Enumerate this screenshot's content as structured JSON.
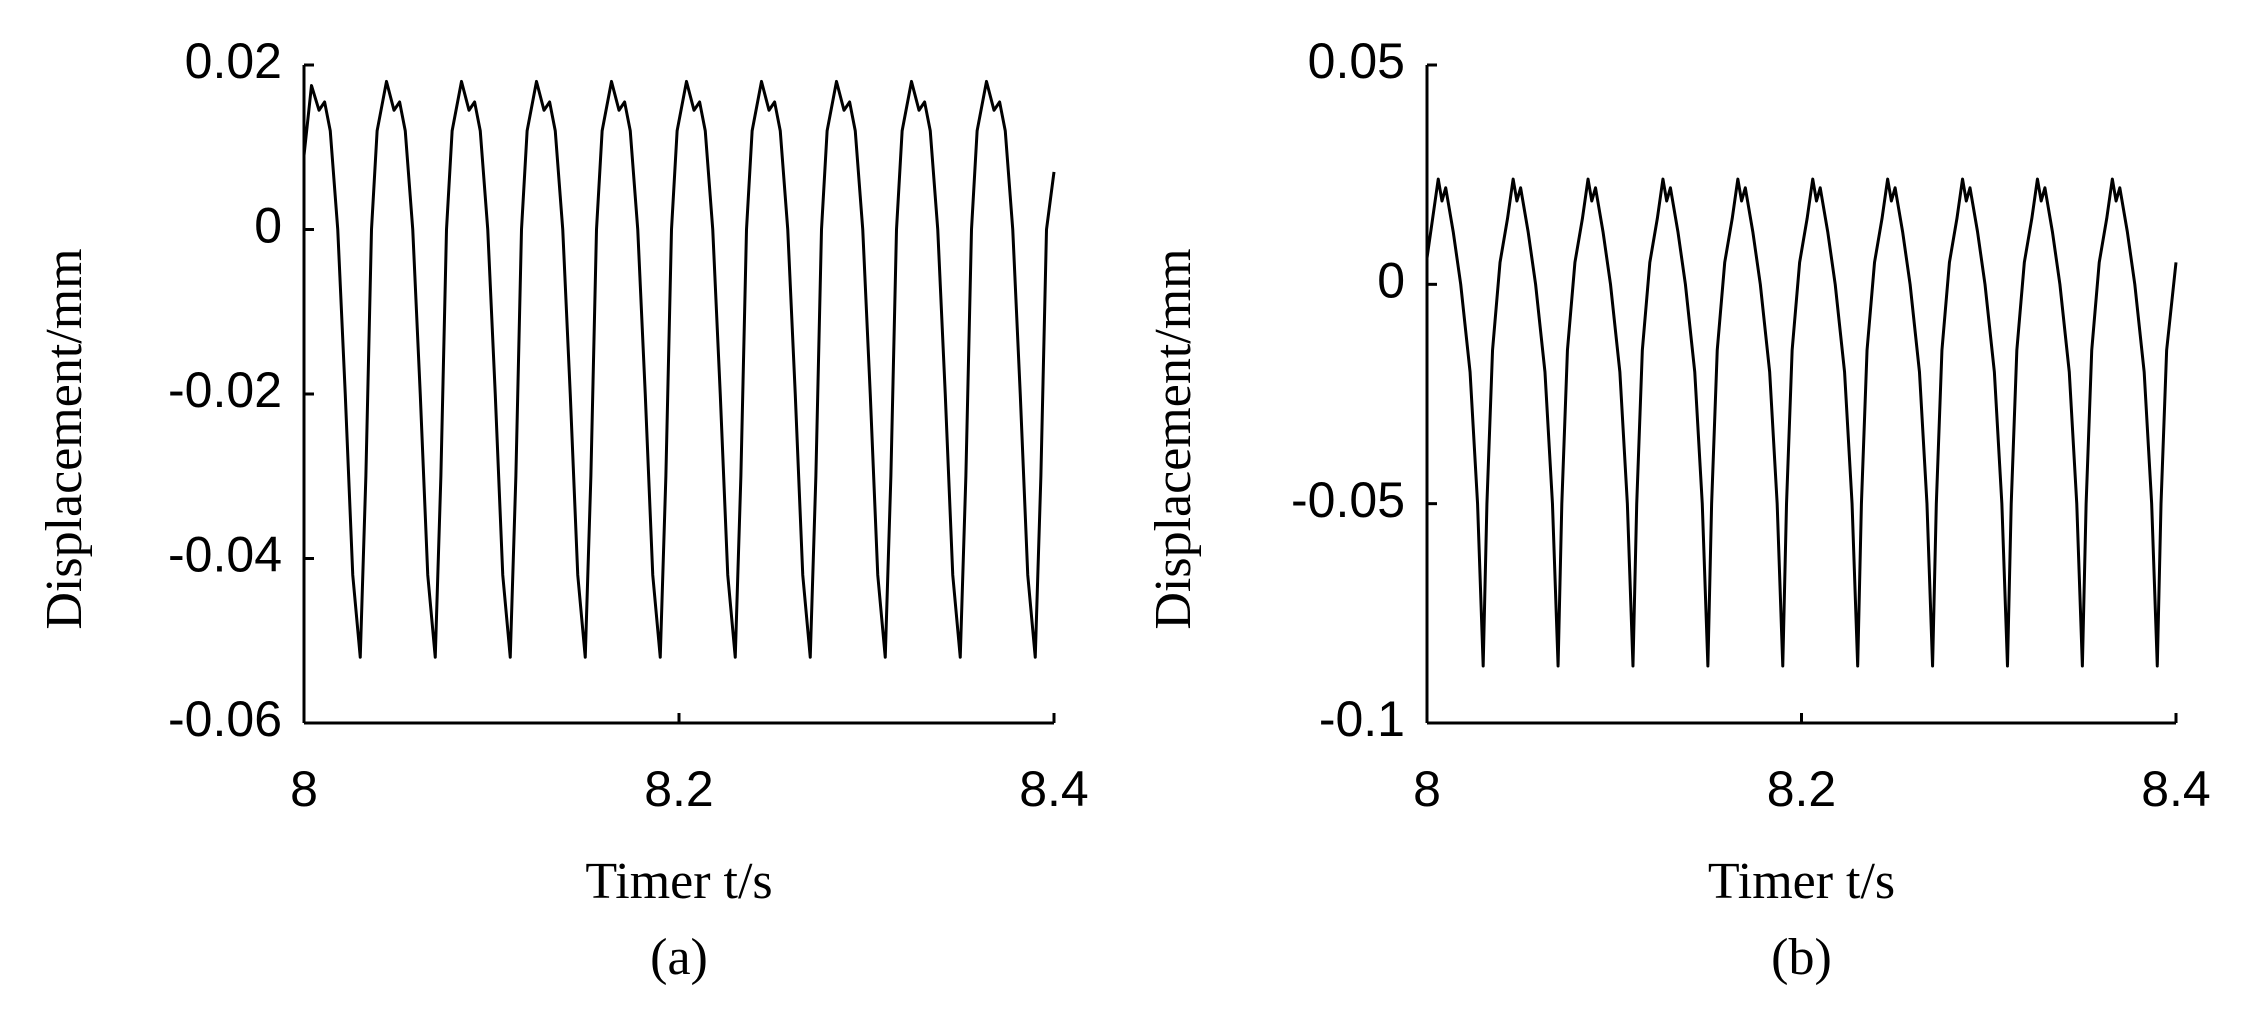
{
  "chart_data": [
    {
      "type": "line",
      "caption": "(a)",
      "x_label": "Timer t/s",
      "y_label": "Displacement/mm",
      "color": "#000000",
      "xlim": [
        8,
        8.4
      ],
      "xticks": [
        8,
        8.2,
        8.4
      ],
      "ylim": [
        -0.06,
        0.02
      ],
      "yticks": [
        0.02,
        0,
        -0.02,
        -0.04,
        -0.06
      ],
      "x": [
        8.0,
        8.004,
        8.008,
        8.011,
        8.014,
        8.018,
        8.022,
        8.026,
        8.03,
        8.033,
        8.036,
        8.039,
        8.044,
        8.048,
        8.051,
        8.054,
        8.058,
        8.062,
        8.066,
        8.07,
        8.073,
        8.076,
        8.079,
        8.084,
        8.088,
        8.091,
        8.094,
        8.098,
        8.102,
        8.106,
        8.11,
        8.113,
        8.116,
        8.119,
        8.124,
        8.128,
        8.131,
        8.134,
        8.138,
        8.142,
        8.146,
        8.15,
        8.153,
        8.156,
        8.159,
        8.164,
        8.168,
        8.171,
        8.174,
        8.178,
        8.182,
        8.186,
        8.19,
        8.193,
        8.196,
        8.199,
        8.204,
        8.208,
        8.211,
        8.214,
        8.218,
        8.222,
        8.226,
        8.23,
        8.233,
        8.236,
        8.239,
        8.244,
        8.248,
        8.251,
        8.254,
        8.258,
        8.262,
        8.266,
        8.27,
        8.273,
        8.276,
        8.279,
        8.284,
        8.288,
        8.291,
        8.294,
        8.298,
        8.302,
        8.306,
        8.31,
        8.313,
        8.316,
        8.319,
        8.324,
        8.328,
        8.331,
        8.334,
        8.338,
        8.342,
        8.346,
        8.35,
        8.353,
        8.356,
        8.359,
        8.364,
        8.368,
        8.371,
        8.374,
        8.378,
        8.382,
        8.386,
        8.39,
        8.393,
        8.396,
        8.4
      ],
      "values": [
        0.009,
        0.0175,
        0.0145,
        0.0155,
        0.012,
        0,
        -0.02,
        -0.042,
        -0.052,
        -0.03,
        0,
        0.012,
        0.018,
        0.0145,
        0.0155,
        0.012,
        0,
        -0.02,
        -0.042,
        -0.052,
        -0.03,
        0,
        0.012,
        0.018,
        0.0145,
        0.0155,
        0.012,
        0,
        -0.02,
        -0.042,
        -0.052,
        -0.03,
        0,
        0.012,
        0.018,
        0.0145,
        0.0155,
        0.012,
        0,
        -0.02,
        -0.042,
        -0.052,
        -0.03,
        0,
        0.012,
        0.018,
        0.0145,
        0.0155,
        0.012,
        0,
        -0.02,
        -0.042,
        -0.052,
        -0.03,
        0,
        0.012,
        0.018,
        0.0145,
        0.0155,
        0.012,
        0,
        -0.02,
        -0.042,
        -0.052,
        -0.03,
        0,
        0.012,
        0.018,
        0.0145,
        0.0155,
        0.012,
        0,
        -0.02,
        -0.042,
        -0.052,
        -0.03,
        0,
        0.012,
        0.018,
        0.0145,
        0.0155,
        0.012,
        0,
        -0.02,
        -0.042,
        -0.052,
        -0.03,
        0,
        0.012,
        0.018,
        0.0145,
        0.0155,
        0.012,
        0,
        -0.02,
        -0.042,
        -0.052,
        -0.03,
        0,
        0.012,
        0.018,
        0.0145,
        0.0155,
        0.012,
        0,
        -0.02,
        -0.042,
        -0.052,
        -0.03,
        0,
        0.007
      ]
    },
    {
      "type": "line",
      "caption": "(b)",
      "x_label": "Timer t/s",
      "y_label": "Displacement/mm",
      "color": "#000000",
      "xlim": [
        8,
        8.4
      ],
      "xticks": [
        8,
        8.2,
        8.4
      ],
      "ylim": [
        -0.1,
        0.05
      ],
      "yticks": [
        0.05,
        0,
        -0.05,
        -0.1
      ],
      "x": [
        8.0,
        8.003,
        8.006,
        8.008,
        8.01,
        8.014,
        8.018,
        8.023,
        8.027,
        8.03,
        8.032,
        8.035,
        8.039,
        8.043,
        8.046,
        8.048,
        8.05,
        8.054,
        8.058,
        8.063,
        8.067,
        8.07,
        8.072,
        8.075,
        8.079,
        8.083,
        8.086,
        8.088,
        8.09,
        8.094,
        8.098,
        8.103,
        8.107,
        8.11,
        8.112,
        8.115,
        8.119,
        8.123,
        8.126,
        8.128,
        8.13,
        8.134,
        8.138,
        8.143,
        8.147,
        8.15,
        8.152,
        8.155,
        8.159,
        8.163,
        8.166,
        8.168,
        8.17,
        8.174,
        8.178,
        8.183,
        8.187,
        8.19,
        8.192,
        8.195,
        8.199,
        8.203,
        8.206,
        8.208,
        8.21,
        8.214,
        8.218,
        8.223,
        8.227,
        8.23,
        8.232,
        8.235,
        8.239,
        8.243,
        8.246,
        8.248,
        8.25,
        8.254,
        8.258,
        8.263,
        8.267,
        8.27,
        8.272,
        8.275,
        8.279,
        8.283,
        8.286,
        8.288,
        8.29,
        8.294,
        8.298,
        8.303,
        8.307,
        8.31,
        8.312,
        8.315,
        8.319,
        8.323,
        8.326,
        8.328,
        8.33,
        8.334,
        8.338,
        8.343,
        8.347,
        8.35,
        8.352,
        8.355,
        8.359,
        8.363,
        8.366,
        8.368,
        8.37,
        8.374,
        8.378,
        8.383,
        8.387,
        8.39,
        8.392,
        8.395,
        8.4
      ],
      "values": [
        0.006,
        0.015,
        0.024,
        0.019,
        0.022,
        0.012,
        0,
        -0.02,
        -0.05,
        -0.087,
        -0.05,
        -0.015,
        0.005,
        0.015,
        0.024,
        0.019,
        0.022,
        0.012,
        0,
        -0.02,
        -0.05,
        -0.087,
        -0.05,
        -0.015,
        0.005,
        0.015,
        0.024,
        0.019,
        0.022,
        0.012,
        0,
        -0.02,
        -0.05,
        -0.087,
        -0.05,
        -0.015,
        0.005,
        0.015,
        0.024,
        0.019,
        0.022,
        0.012,
        0,
        -0.02,
        -0.05,
        -0.087,
        -0.05,
        -0.015,
        0.005,
        0.015,
        0.024,
        0.019,
        0.022,
        0.012,
        0,
        -0.02,
        -0.05,
        -0.087,
        -0.05,
        -0.015,
        0.005,
        0.015,
        0.024,
        0.019,
        0.022,
        0.012,
        0,
        -0.02,
        -0.05,
        -0.087,
        -0.05,
        -0.015,
        0.005,
        0.015,
        0.024,
        0.019,
        0.022,
        0.012,
        0,
        -0.02,
        -0.05,
        -0.087,
        -0.05,
        -0.015,
        0.005,
        0.015,
        0.024,
        0.019,
        0.022,
        0.012,
        0,
        -0.02,
        -0.05,
        -0.087,
        -0.05,
        -0.015,
        0.005,
        0.015,
        0.024,
        0.019,
        0.022,
        0.012,
        0,
        -0.02,
        -0.05,
        -0.087,
        -0.05,
        -0.015,
        0.005,
        0.015,
        0.024,
        0.019,
        0.022,
        0.012,
        0,
        -0.02,
        -0.05,
        -0.087,
        -0.05,
        -0.015,
        0.005
      ]
    }
  ]
}
